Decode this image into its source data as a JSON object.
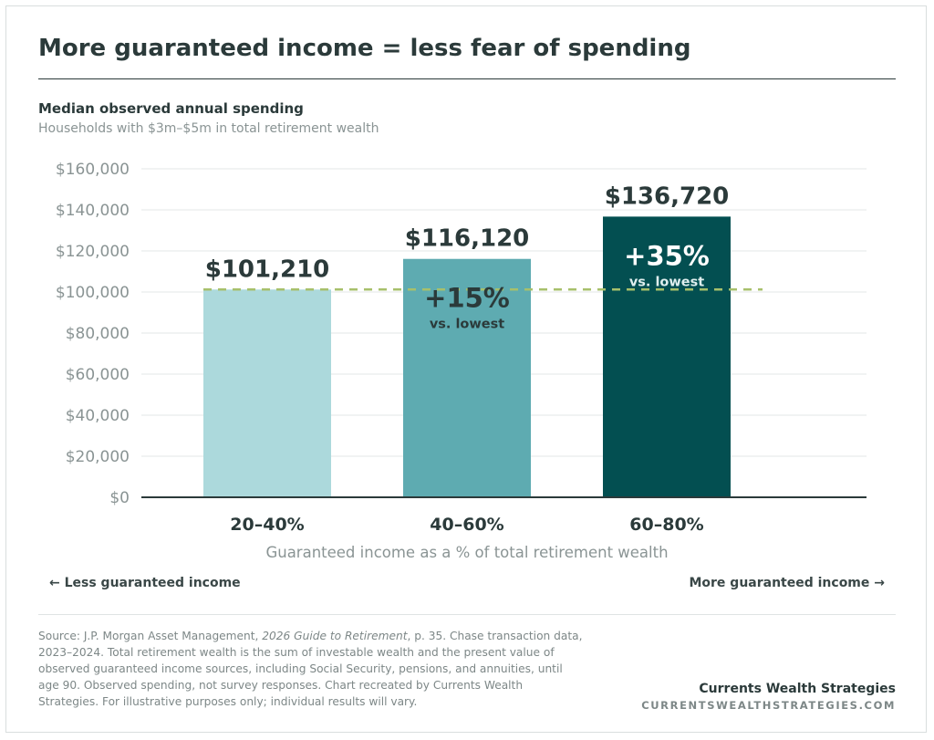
{
  "header": {
    "title": "More guaranteed income = less fear of spending",
    "subtitle": "Median observed annual spending",
    "subsubtitle": "Households with $3m–$5m in total retirement wealth"
  },
  "chart_data": {
    "type": "bar",
    "categories": [
      "20–40%",
      "40–60%",
      "60–80%"
    ],
    "values": [
      101210,
      116120,
      136720
    ],
    "value_labels": [
      "$101,210",
      "$116,120",
      "$136,720"
    ],
    "xlabel": "Guaranteed income as a % of total retirement wealth",
    "ylabel": "",
    "ylim": [
      0,
      160000
    ],
    "yticks": [
      0,
      20000,
      40000,
      60000,
      80000,
      100000,
      120000,
      140000,
      160000
    ],
    "ytick_labels": [
      "$0",
      "$20,000",
      "$40,000",
      "$60,000",
      "$80,000",
      "$100,000",
      "$120,000",
      "$140,000",
      "$160,000"
    ],
    "reference_line": {
      "value": 101210,
      "style": "dashed",
      "color": "#a7c06b"
    },
    "annotations": [
      {
        "category": "40–60%",
        "pct": "+15%",
        "note": "vs. lowest"
      },
      {
        "category": "60–80%",
        "pct": "+35%",
        "note": "vs. lowest"
      }
    ],
    "bar_colors": [
      "#acd9dc",
      "#5eabb1",
      "#034f51"
    ],
    "annotation_colors": [
      "#2b3a3a",
      "#ffffff"
    ],
    "annotation_note_colors": [
      "#2b3a3a",
      "#dfeeee"
    ],
    "grid": true,
    "legend": "none"
  },
  "footer": {
    "left_arrow": "← Less guaranteed income",
    "right_arrow": "More guaranteed income →",
    "source_prefix": "Source: J.P. Morgan Asset Management, ",
    "source_title": "2026 Guide to Retirement",
    "source_rest": ", p. 35. Chase transaction data, 2023–2024. Total retirement wealth is the sum of investable wealth and the present value of observed guaranteed income sources, including Social Security, pensions, and annuities, until age 90. Observed spending, not survey responses. Chart recreated by Currents Wealth Strategies. For illustrative purposes only; individual results will vary.",
    "brand": "Currents Wealth Strategies",
    "brand_url": "CURRENTSWEALTHSTRATEGIES.COM"
  },
  "colors": {
    "text_dark": "#2b3a3a",
    "text_muted": "#8a9494",
    "grid": "#e3e7e7",
    "axis": "#2b3a3a"
  }
}
